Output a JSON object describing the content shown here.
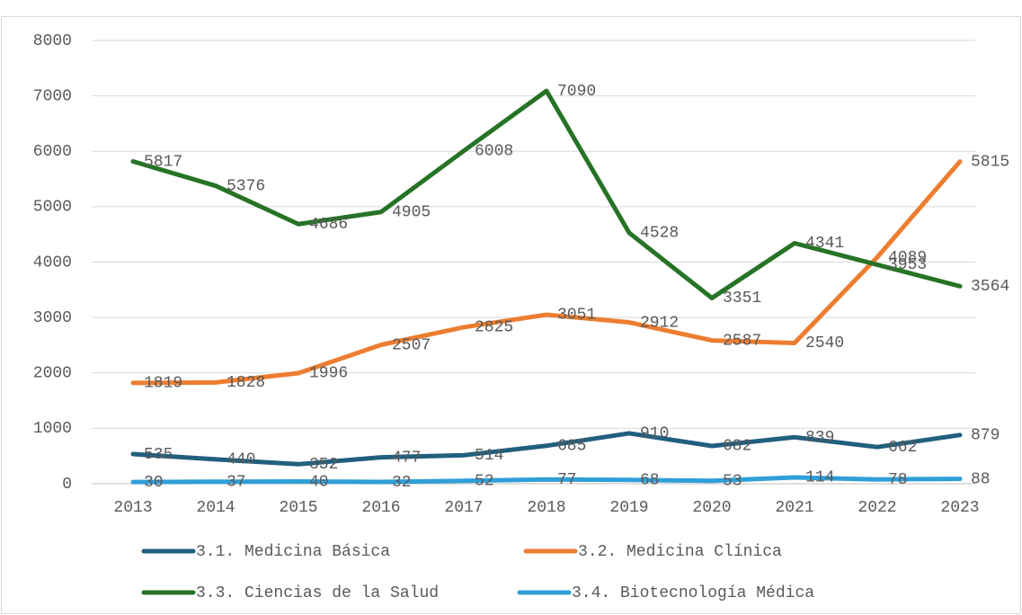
{
  "chart_data": {
    "type": "line",
    "categories": [
      "2013",
      "2014",
      "2015",
      "2016",
      "2017",
      "2018",
      "2019",
      "2020",
      "2021",
      "2022",
      "2023"
    ],
    "series": [
      {
        "name": "3.1. Medicina Básica",
        "color": "#215f7f",
        "values": [
          535,
          440,
          352,
          477,
          514,
          685,
          910,
          682,
          839,
          662,
          879
        ]
      },
      {
        "name": "3.2. Medicina Clínica",
        "color": "#ed7d31",
        "values": [
          1819,
          1828,
          1996,
          2507,
          2825,
          3051,
          2912,
          2587,
          2540,
          4089,
          5815
        ]
      },
      {
        "name": "3.3. Ciencias de la Salud",
        "color": "#267326",
        "values": [
          5817,
          5376,
          4686,
          4905,
          6008,
          7090,
          4528,
          3351,
          4341,
          3953,
          3564
        ]
      },
      {
        "name": "3.4. Biotecnología Médica",
        "color": "#2f9fd8",
        "values": [
          30,
          37,
          40,
          32,
          52,
          77,
          68,
          53,
          114,
          78,
          88
        ]
      }
    ],
    "ylim": [
      0,
      8000
    ],
    "yticks": [
      0,
      1000,
      2000,
      3000,
      4000,
      5000,
      6000,
      7000,
      8000
    ],
    "grid": true,
    "legend": "bottom"
  }
}
